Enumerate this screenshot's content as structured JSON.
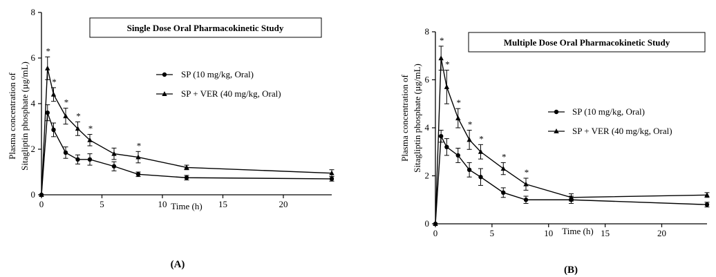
{
  "chart_data": [
    {
      "type": "line",
      "panel_label": "(A)",
      "title": "Single Dose Oral Pharmacokinetic Study",
      "xlabel": "Time (h)",
      "ylabel_line1": "Plasma concentration of",
      "ylabel_line2": "Sitagliptin phosphate (µg/mL)",
      "xlim": [
        0,
        24
      ],
      "ylim": [
        0,
        8
      ],
      "xticks": [
        0,
        5,
        10,
        15,
        20
      ],
      "yticks": [
        0,
        2,
        4,
        6,
        8
      ],
      "grid": false,
      "legend_position": "right",
      "x": [
        0,
        0.5,
        1,
        2,
        3,
        4,
        6,
        8,
        12,
        24
      ],
      "series": [
        {
          "name": "SP (10 mg/kg, Oral)",
          "marker": "circle",
          "values": [
            0,
            3.6,
            2.85,
            1.85,
            1.55,
            1.55,
            1.25,
            0.9,
            0.75,
            0.7
          ],
          "errors": [
            0,
            0.35,
            0.3,
            0.25,
            0.2,
            0.25,
            0.2,
            0.1,
            0.1,
            0.1
          ]
        },
        {
          "name": "SP + VER (40 mg/kg, Oral)",
          "marker": "triangle",
          "values": [
            0,
            5.55,
            4.4,
            3.45,
            2.9,
            2.4,
            1.8,
            1.65,
            1.2,
            0.95
          ],
          "errors": [
            0,
            0.5,
            0.3,
            0.35,
            0.3,
            0.25,
            0.25,
            0.25,
            0.1,
            0.15
          ],
          "significant": [
            false,
            true,
            true,
            true,
            true,
            true,
            false,
            true,
            false,
            false
          ]
        }
      ]
    },
    {
      "type": "line",
      "panel_label": "(B)",
      "title": "Multiple Dose Oral Pharmacokinetic Study",
      "xlabel": "Time (h)",
      "ylabel_line1": "Plasma concentration of",
      "ylabel_line2": "Sitagliptin phosphate (µg/mL)",
      "xlim": [
        0,
        24
      ],
      "ylim": [
        0,
        8
      ],
      "xticks": [
        0,
        5,
        10,
        15,
        20
      ],
      "yticks": [
        0,
        2,
        4,
        6,
        8
      ],
      "grid": false,
      "legend_position": "right",
      "x": [
        0,
        0.5,
        1,
        2,
        3,
        4,
        6,
        8,
        12,
        24
      ],
      "series": [
        {
          "name": "SP (10 mg/kg, Oral)",
          "marker": "circle",
          "values": [
            0,
            3.65,
            3.2,
            2.85,
            2.25,
            1.95,
            1.3,
            1.0,
            1.0,
            0.8
          ],
          "errors": [
            0,
            0.25,
            0.35,
            0.3,
            0.3,
            0.35,
            0.2,
            0.15,
            0.15,
            0.1
          ]
        },
        {
          "name": "SP + VER (40 mg/kg, Oral)",
          "marker": "triangle",
          "values": [
            0,
            6.9,
            5.7,
            4.4,
            3.5,
            3.0,
            2.3,
            1.65,
            1.1,
            1.2
          ],
          "errors": [
            0,
            0.5,
            0.7,
            0.4,
            0.4,
            0.3,
            0.25,
            0.25,
            0.15,
            0.1
          ],
          "significant": [
            false,
            true,
            true,
            true,
            true,
            true,
            true,
            true,
            false,
            false
          ]
        }
      ]
    }
  ]
}
